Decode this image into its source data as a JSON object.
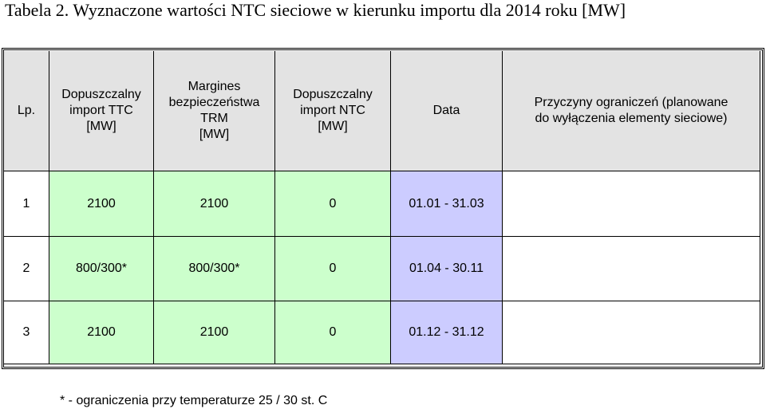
{
  "title": "Tabela 2. Wyznaczone wartości NTC sieciowe w kierunku importu dla 2014 roku [MW]",
  "table": {
    "header": [
      [
        "Lp."
      ],
      [
        "Dopuszczalny",
        "import TTC",
        "[MW]"
      ],
      [
        "Margines",
        "bezpieczeństwa",
        "TRM",
        "[MW]"
      ],
      [
        "Dopuszczalny",
        "import NTC",
        "[MW]"
      ],
      [
        "Data"
      ],
      [
        "Przyczyny ograniczeń (planowane",
        "do wyłączenia elementy sieciowe)"
      ]
    ],
    "rows": [
      [
        "1",
        "2100",
        "2100",
        "0",
        "01.01 - 31.03"
      ],
      [
        "2",
        "800/300*",
        "800/300*",
        "0",
        "01.04 - 30.11"
      ],
      [
        "3",
        "2100",
        "2100",
        "0",
        "01.12 - 31.12"
      ]
    ]
  },
  "footnote": "* - ograniczenia przy temperaturze 25 / 30 st. C"
}
